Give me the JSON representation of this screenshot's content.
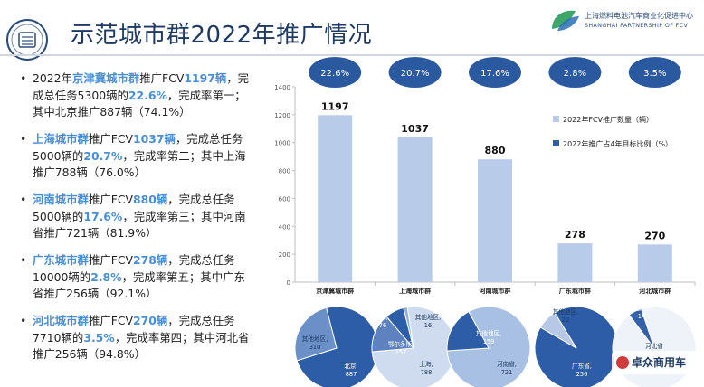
{
  "header": {
    "title": "示范城市群2022年推广情况",
    "brand_cn": "上海燃料电池汽车商业化促进中心",
    "brand_en": "SHANGHAI PARTNERSHIP OF FCV"
  },
  "bullets": [
    {
      "before": "2022年",
      "city": "京津冀城市群",
      "mid": "推广FCV",
      "count": "1197辆",
      "text2": "，完成总任务5300辆的",
      "pct": "22.6%",
      "text3": "，完成率第一；其中北京推广887辆（74.1%）"
    },
    {
      "before": "",
      "city": "上海城市群",
      "mid": "推广FCV",
      "count": "1037辆",
      "text2": "，完成总任务5000辆的",
      "pct": "20.7%",
      "text3": "，完成率第二；其中上海推广788辆（76.0%）"
    },
    {
      "before": "",
      "city": "河南城市群",
      "mid": "推广FCV",
      "count": "880辆",
      "text2": "，完成总任务5000辆的",
      "pct": "17.6%",
      "text3": "，完成率第三；其中河南省推广721辆（81.9%）"
    },
    {
      "before": "",
      "city": "广东城市群",
      "mid": "推广FCV",
      "count": "278辆",
      "text2": "，完成总任务10000辆的",
      "pct": "2.8%",
      "text3": "，完成率第五；其中广东省推广256辆（92.1%）"
    },
    {
      "before": "",
      "city": "河北城市群",
      "mid": "推广FCV",
      "count": "270辆",
      "text2": "，完成总任务7710辆的",
      "pct": "3.5%",
      "text3": "，完成率第四；其中河北省推广256辆（94.8%）"
    }
  ],
  "watermark": "卓众商用车",
  "chart_data": [
    {
      "type": "bar",
      "categories": [
        "京津冀城市群",
        "上海城市群",
        "河南城市群",
        "广东城市群",
        "河北城市群"
      ],
      "series": [
        {
          "name": "2022年FCV推广数量（辆）",
          "values": [
            1197,
            1037,
            880,
            278,
            270
          ]
        },
        {
          "name": "2022年推广占4年目标比例（%）",
          "values": [
            "22.6%",
            "20.7%",
            "17.6%",
            "2.8%",
            "3.5%"
          ]
        }
      ],
      "ylim": [
        0,
        1400
      ],
      "yticks": [
        0,
        200,
        400,
        600,
        800,
        1000,
        1200,
        1400
      ],
      "legend": "right",
      "colors": {
        "bar": "#b8cbe9",
        "badge": "#2b59a0",
        "legend2": "#2f5caa"
      }
    },
    {
      "type": "pie",
      "slices": [
        {
          "label": "北京",
          "display": "北京, 887",
          "value": 887
        },
        {
          "label": "其他地区",
          "display": "其他地区, 310",
          "value": 310
        }
      ]
    },
    {
      "type": "pie",
      "slices": [
        {
          "label": "上海",
          "display": "上海, 788",
          "value": 788
        },
        {
          "label": "鄂尔多斯",
          "display": "鄂尔多斯, 157",
          "value": 157
        },
        {
          "label": "嘉兴",
          "display": "嘉兴, 76",
          "value": 76
        },
        {
          "label": "其他地区",
          "display": "其他地区, 16",
          "value": 16
        }
      ]
    },
    {
      "type": "pie",
      "slices": [
        {
          "label": "河南省",
          "display": "河南省, 721",
          "value": 721
        },
        {
          "label": "其他地区",
          "display": "其他地区, 159",
          "value": 159
        }
      ]
    },
    {
      "type": "pie",
      "slices": [
        {
          "label": "广东省",
          "display": "广东省, 256",
          "value": 256
        },
        {
          "label": "其他地区",
          "display": "其他地区, 22",
          "value": 22
        }
      ]
    },
    {
      "type": "pie",
      "slices": [
        {
          "label": "河北省",
          "display": "河北省",
          "value": 256
        },
        {
          "label": "其他地区",
          "display": "其他地区, 14",
          "value": 14
        }
      ]
    }
  ]
}
